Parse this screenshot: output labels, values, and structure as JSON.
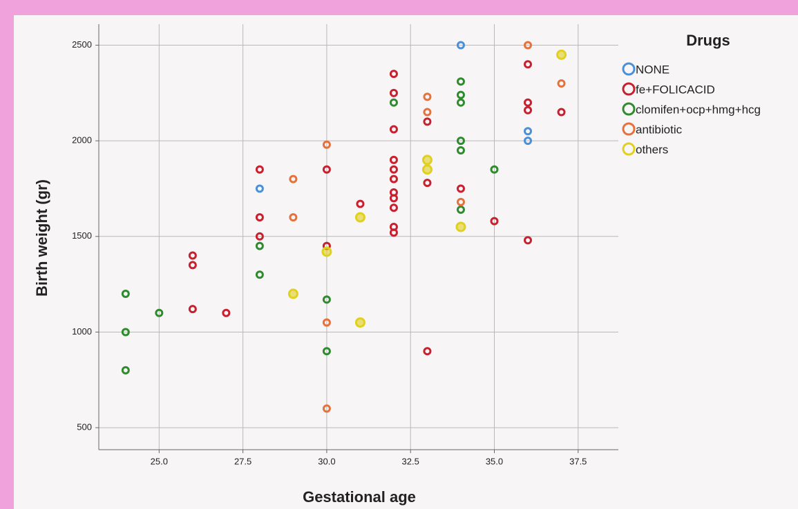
{
  "chart_data": {
    "type": "scatter",
    "xlabel": "Gestational age",
    "ylabel": "Birth weight (gr)",
    "legend_title": "Drugs",
    "xlim": [
      23.2,
      38.7
    ],
    "ylim": [
      385,
      2610
    ],
    "xticks": [
      {
        "value": 25,
        "label": "25.0"
      },
      {
        "value": 27.5,
        "label": "27.5"
      },
      {
        "value": 30,
        "label": "30.0"
      },
      {
        "value": 32.5,
        "label": "32.5"
      },
      {
        "value": 35,
        "label": "35.0"
      },
      {
        "value": 37.5,
        "label": "37.5"
      }
    ],
    "yticks": [
      500,
      1000,
      1500,
      2000,
      2500
    ],
    "grid": true,
    "legend": "right",
    "series": [
      {
        "name": "NONE",
        "color": "#4a90d9",
        "x": [
          34,
          28,
          36,
          36
        ],
        "y": [
          2500,
          1750,
          2050,
          2000
        ]
      },
      {
        "name": "fe+FOLICACID",
        "color": "#c8202f",
        "x": [
          26,
          26,
          26,
          27,
          28,
          28,
          28,
          30,
          30,
          31,
          32,
          32,
          32,
          32,
          32,
          32,
          32,
          32,
          32,
          32,
          32,
          33,
          33,
          33,
          34,
          35,
          36,
          36,
          36,
          36,
          37
        ],
        "y": [
          1400,
          1350,
          1120,
          1100,
          1850,
          1600,
          1500,
          1850,
          1450,
          1670,
          2350,
          2250,
          2060,
          1900,
          1850,
          1800,
          1730,
          1700,
          1650,
          1550,
          1520,
          2100,
          1780,
          900,
          1750,
          1580,
          2400,
          2200,
          2160,
          1480,
          2150
        ]
      },
      {
        "name": "clomifen+ocp+hmg+hcg",
        "color": "#2e8b2e",
        "x": [
          24,
          24,
          24,
          25,
          28,
          28,
          30,
          30,
          32,
          34,
          34,
          34,
          34,
          34,
          34,
          35
        ],
        "y": [
          1200,
          1000,
          800,
          1100,
          1450,
          1300,
          1170,
          900,
          2200,
          2310,
          2240,
          2200,
          2000,
          1950,
          1640,
          1850
        ]
      },
      {
        "name": "antibiotic",
        "color": "#e8703a",
        "x": [
          29,
          29,
          30,
          30,
          30,
          33,
          33,
          34,
          36,
          37
        ],
        "y": [
          1800,
          1600,
          1980,
          1050,
          600,
          2230,
          2150,
          1680,
          2500,
          2300
        ]
      },
      {
        "name": "others",
        "color": "#e0d020",
        "x": [
          29,
          30,
          31,
          31,
          33,
          33,
          34,
          37
        ],
        "y": [
          1200,
          1420,
          1600,
          1050,
          1900,
          1850,
          1550,
          2450
        ]
      }
    ]
  }
}
